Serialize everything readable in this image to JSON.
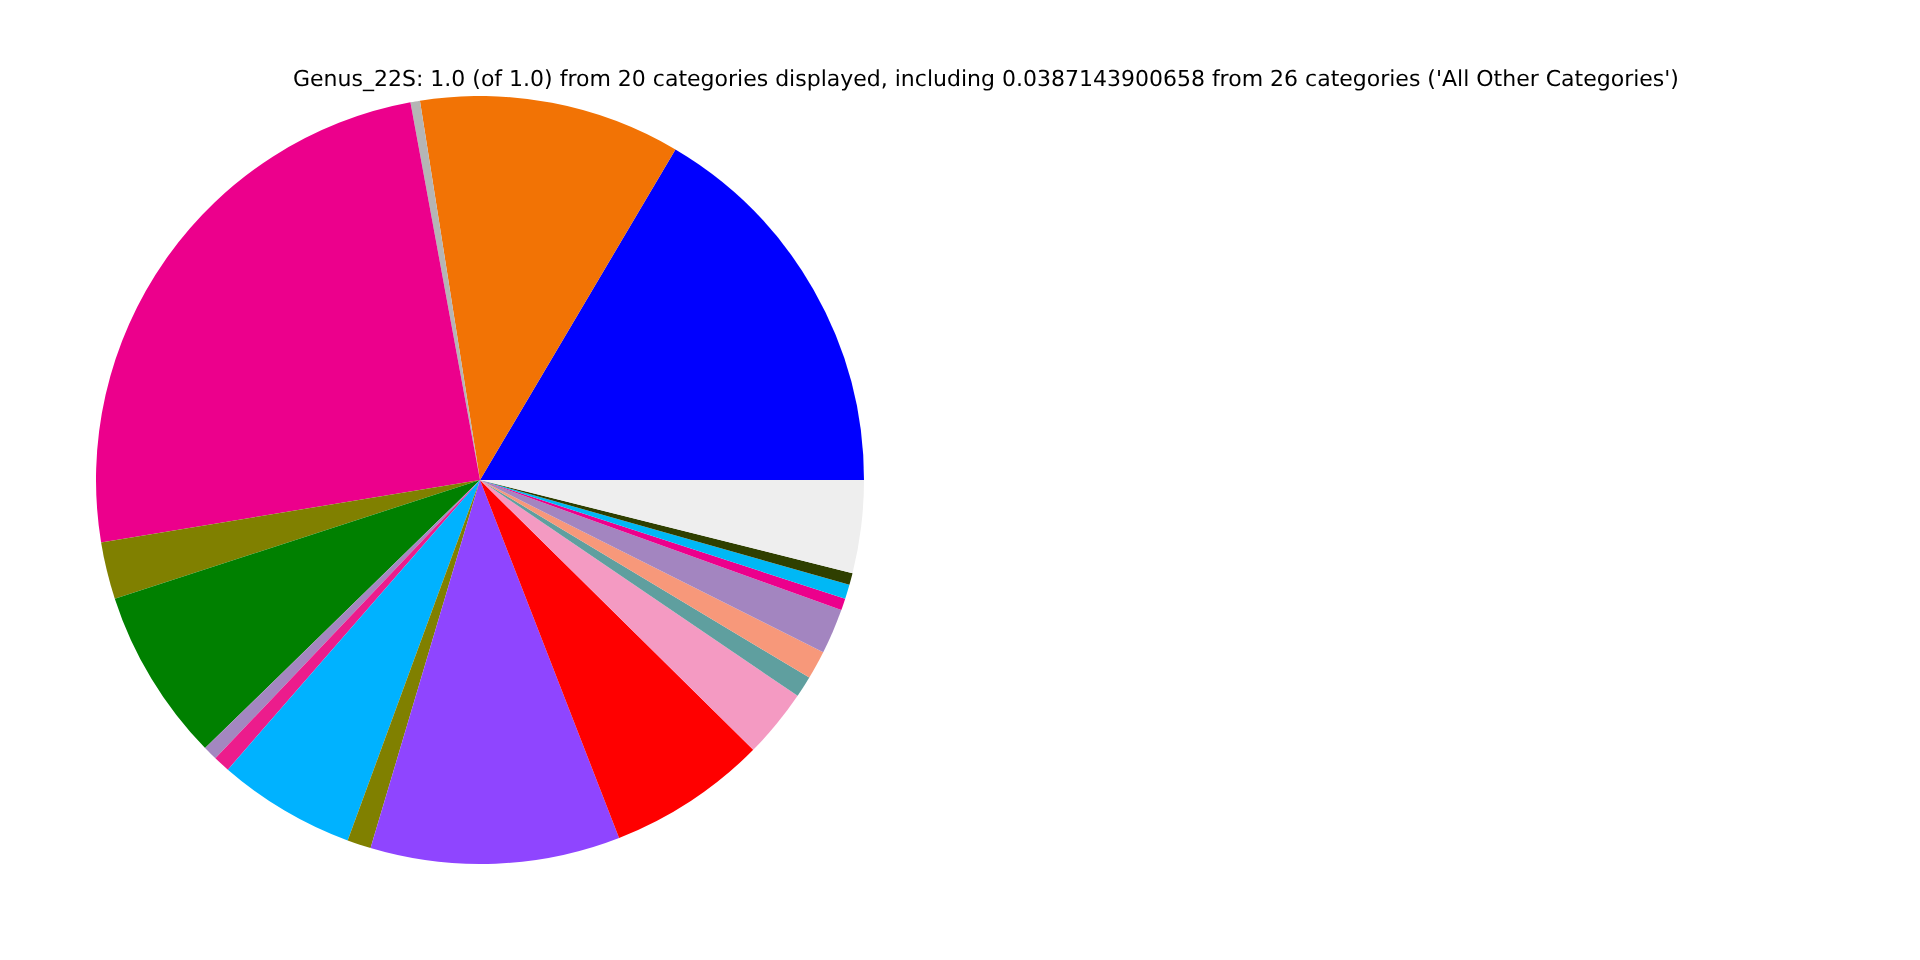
{
  "chart_data": {
    "type": "pie",
    "title": "Genus_22S: 1.0 (of 1.0) from 20 categories displayed, including 0.0387143900658 from 26 categories ('All Other Categories')",
    "categories": [
      null,
      null,
      null,
      null,
      null,
      null,
      null,
      null,
      null,
      null,
      null,
      null,
      null,
      null,
      null,
      null,
      null,
      null,
      null,
      null
    ],
    "values": [
      16.5,
      11.0,
      0.4,
      24.7,
      2.4,
      7.3,
      0.6,
      0.7,
      5.8,
      1.0,
      10.5,
      6.7,
      2.9,
      0.9,
      1.2,
      1.9,
      0.5,
      0.6,
      0.5,
      3.9
    ],
    "colors": [
      "#0000ff",
      "#f27305",
      "#b5b5b5",
      "#ec008c",
      "#808000",
      "#008000",
      "#a387c0",
      "#ec1c8c",
      "#00b2ff",
      "#808000",
      "#8f45ff",
      "#ff0000",
      "#f49ac2",
      "#5f9f9f",
      "#f7987a",
      "#a385c0",
      "#ec008c",
      "#00b8f5",
      "#2f3f00",
      "#eeeeee"
    ],
    "legend": false
  }
}
